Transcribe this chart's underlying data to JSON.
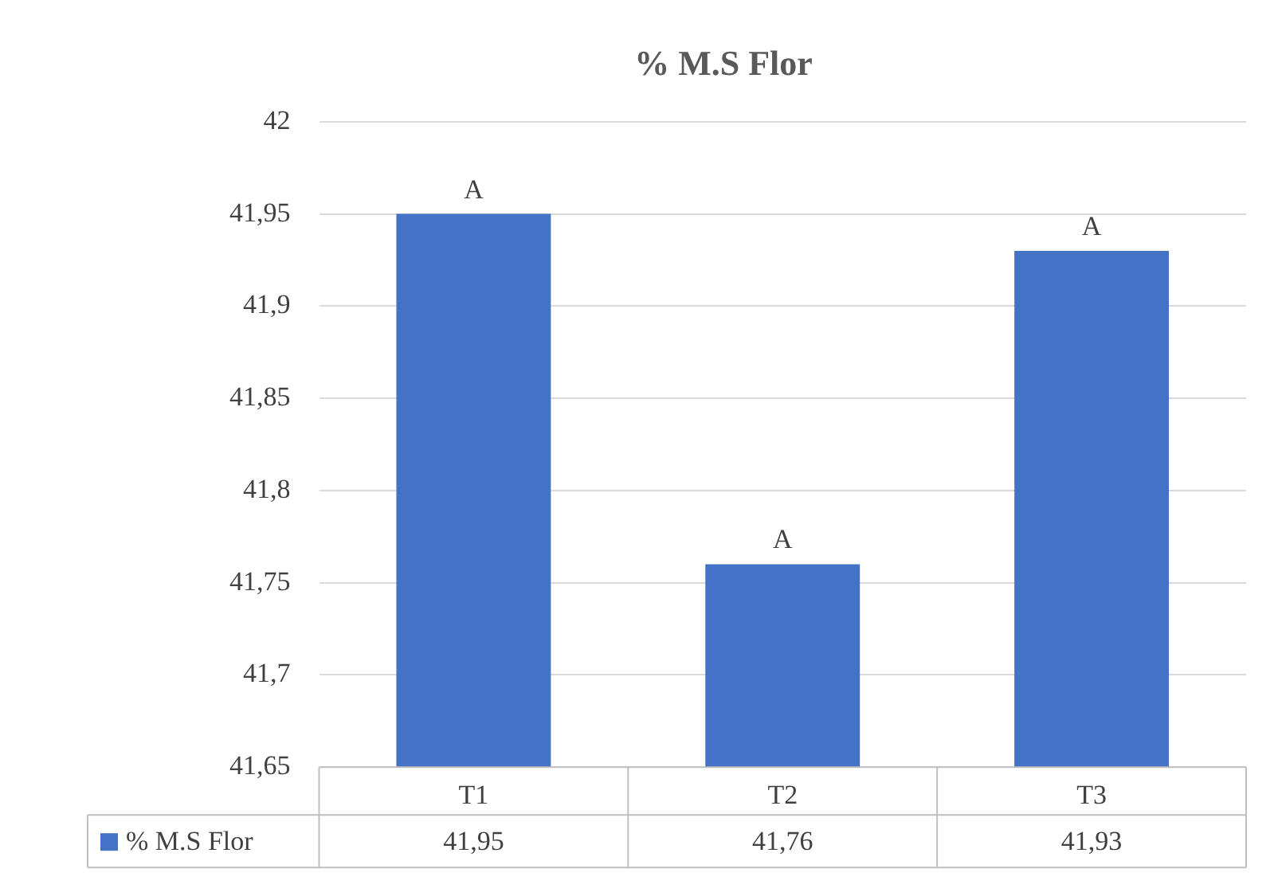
{
  "chart_data": {
    "type": "bar",
    "title": "% M.S Flor",
    "categories": [
      "T1",
      "T2",
      "T3"
    ],
    "series": [
      {
        "name": "% M.S Flor",
        "color": "#4472c4",
        "values": [
          41.95,
          41.76,
          41.93
        ],
        "value_labels": [
          "41,95",
          "41,76",
          "41,93"
        ]
      }
    ],
    "ylim": [
      41.65,
      42
    ],
    "yticks": [
      {
        "value": 41.65,
        "label": "41,65"
      },
      {
        "value": 41.7,
        "label": "41,7"
      },
      {
        "value": 41.75,
        "label": "41,75"
      },
      {
        "value": 41.8,
        "label": "41,8"
      },
      {
        "value": 41.85,
        "label": "41,85"
      },
      {
        "value": 41.9,
        "label": "41,9"
      },
      {
        "value": 41.95,
        "label": "41,95"
      },
      {
        "value": 42,
        "label": "42"
      }
    ],
    "grid": "y",
    "legend": "bottom",
    "annotations": [
      {
        "text": "A",
        "x": "T1",
        "y": 41.95
      },
      {
        "text": "A",
        "x": "T2",
        "y": 41.76
      },
      {
        "text": "A",
        "x": "T3",
        "y": 41.93
      }
    ]
  }
}
